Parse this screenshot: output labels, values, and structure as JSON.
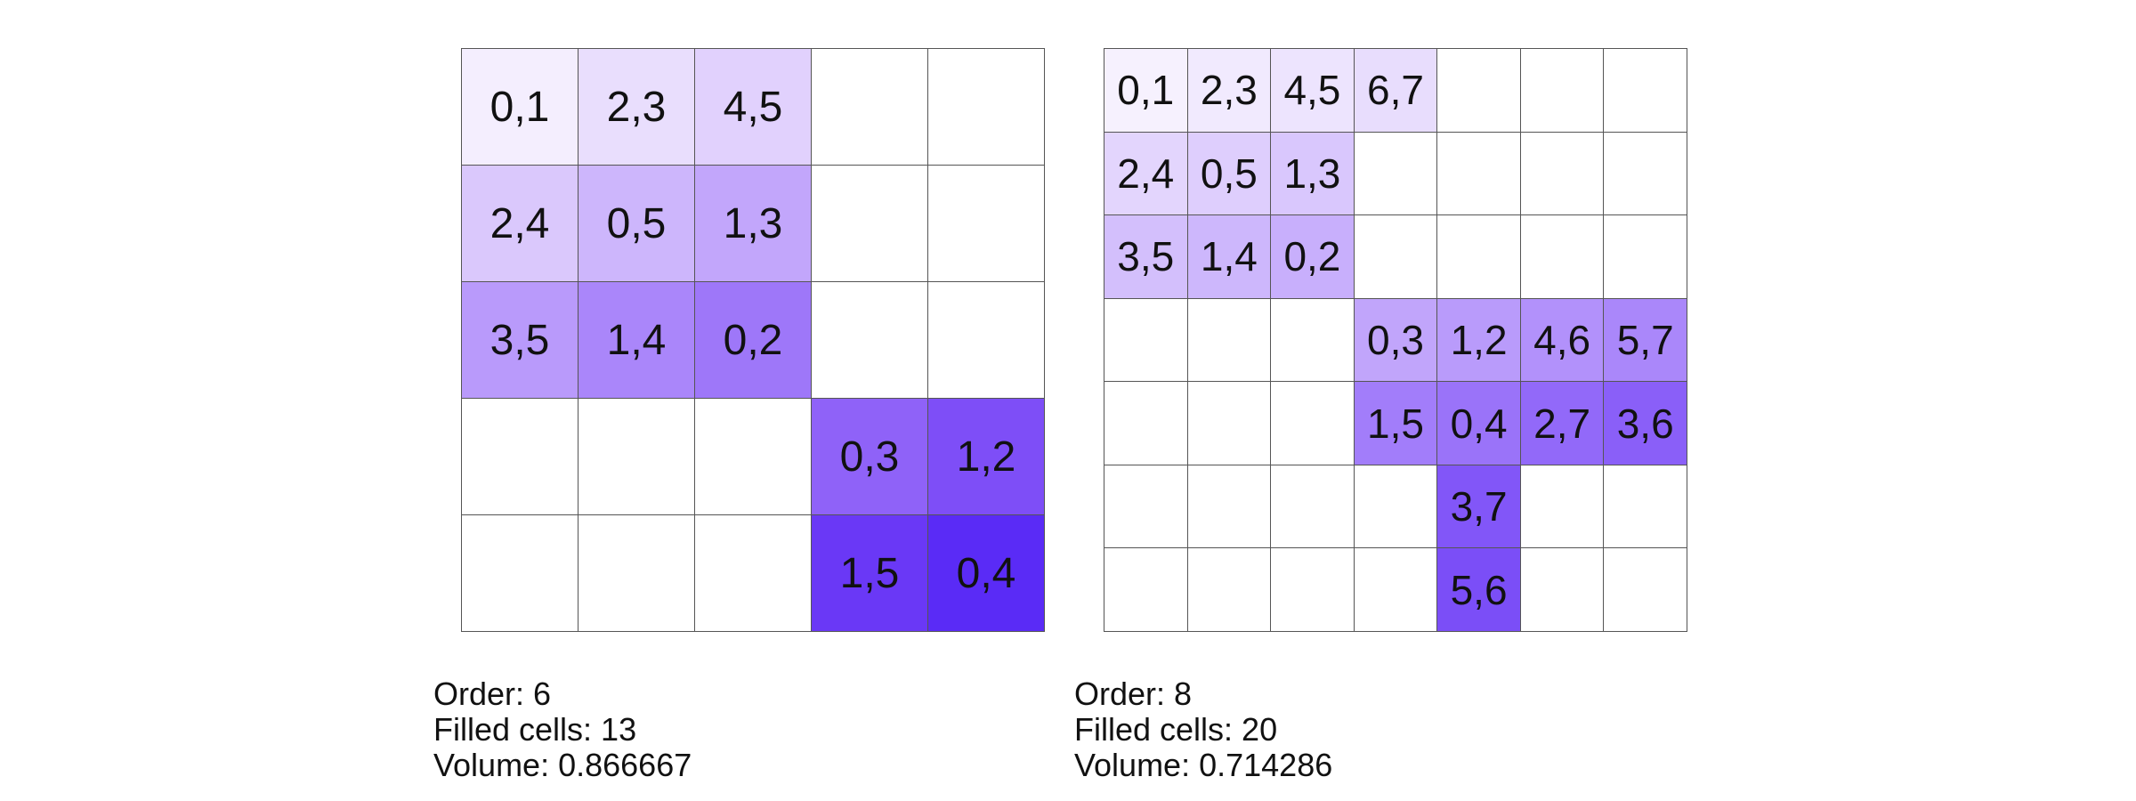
{
  "left": {
    "order_label": "Order: 6",
    "filled_label": "Filled cells: 13",
    "volume_label": "Volume: 0.866667",
    "grid_size": 5,
    "cells": [
      {
        "r": 0,
        "c": 0,
        "text": "0,1",
        "color": "#f4eefe"
      },
      {
        "r": 0,
        "c": 1,
        "text": "2,3",
        "color": "#e9defd"
      },
      {
        "r": 0,
        "c": 2,
        "text": "4,5",
        "color": "#e1d1fd"
      },
      {
        "r": 1,
        "c": 0,
        "text": "2,4",
        "color": "#dac8fc"
      },
      {
        "r": 1,
        "c": 1,
        "text": "0,5",
        "color": "#cdb6fc"
      },
      {
        "r": 1,
        "c": 2,
        "text": "1,3",
        "color": "#c2a6fb"
      },
      {
        "r": 2,
        "c": 0,
        "text": "3,5",
        "color": "#b99afb"
      },
      {
        "r": 2,
        "c": 1,
        "text": "1,4",
        "color": "#aa86fa"
      },
      {
        "r": 2,
        "c": 2,
        "text": "0,2",
        "color": "#9e77f9"
      },
      {
        "r": 3,
        "c": 3,
        "text": "0,3",
        "color": "#8f62f8"
      },
      {
        "r": 3,
        "c": 4,
        "text": "1,2",
        "color": "#7e4ef7"
      },
      {
        "r": 4,
        "c": 3,
        "text": "1,5",
        "color": "#6a38f6"
      },
      {
        "r": 4,
        "c": 4,
        "text": "0,4",
        "color": "#5a2bf6"
      }
    ]
  },
  "right": {
    "order_label": "Order: 8",
    "filled_label": "Filled cells: 20",
    "volume_label": "Volume: 0.714286",
    "grid_size": 7,
    "cells": [
      {
        "r": 0,
        "c": 0,
        "text": "0,1",
        "color": "#f6f1fe"
      },
      {
        "r": 0,
        "c": 1,
        "text": "2,3",
        "color": "#f1eafe"
      },
      {
        "r": 0,
        "c": 2,
        "text": "4,5",
        "color": "#ede4fe"
      },
      {
        "r": 0,
        "c": 3,
        "text": "6,7",
        "color": "#e8ddfd"
      },
      {
        "r": 1,
        "c": 0,
        "text": "2,4",
        "color": "#e3d5fd"
      },
      {
        "r": 1,
        "c": 1,
        "text": "0,5",
        "color": "#decefd"
      },
      {
        "r": 1,
        "c": 2,
        "text": "1,3",
        "color": "#d9c7fd"
      },
      {
        "r": 2,
        "c": 0,
        "text": "3,5",
        "color": "#d3bffc"
      },
      {
        "r": 2,
        "c": 1,
        "text": "1,4",
        "color": "#cdb7fc"
      },
      {
        "r": 2,
        "c": 2,
        "text": "0,2",
        "color": "#c8affc"
      },
      {
        "r": 3,
        "c": 3,
        "text": "0,3",
        "color": "#c1a5fb"
      },
      {
        "r": 3,
        "c": 4,
        "text": "1,2",
        "color": "#b99bfb"
      },
      {
        "r": 3,
        "c": 5,
        "text": "4,6",
        "color": "#b291fb"
      },
      {
        "r": 3,
        "c": 6,
        "text": "5,7",
        "color": "#aa87fa"
      },
      {
        "r": 4,
        "c": 3,
        "text": "1,5",
        "color": "#a27dfa"
      },
      {
        "r": 4,
        "c": 4,
        "text": "0,4",
        "color": "#9a73f9"
      },
      {
        "r": 4,
        "c": 5,
        "text": "2,7",
        "color": "#9269f9"
      },
      {
        "r": 4,
        "c": 6,
        "text": "3,6",
        "color": "#8a5ff8"
      },
      {
        "r": 5,
        "c": 4,
        "text": "3,7",
        "color": "#8256f8"
      },
      {
        "r": 6,
        "c": 4,
        "text": "5,6",
        "color": "#7b4ef7"
      }
    ]
  }
}
